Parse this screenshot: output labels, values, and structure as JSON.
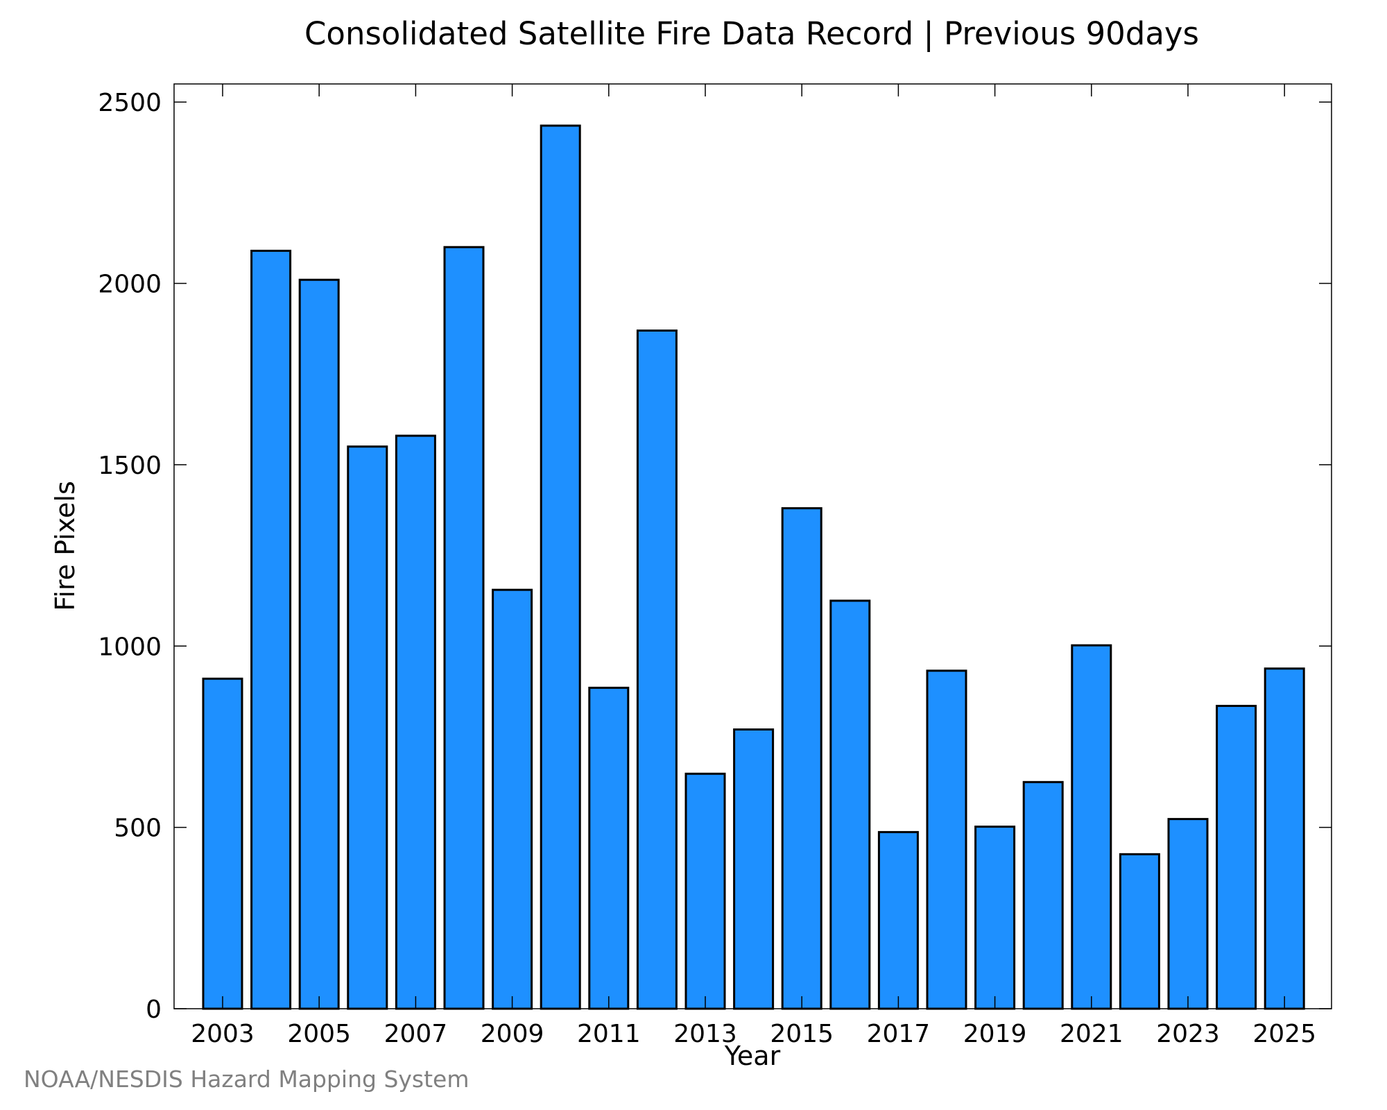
{
  "chart_data": {
    "type": "bar",
    "title": "Consolidated Satellite Fire Data Record | Previous 90days",
    "xlabel": "Year",
    "ylabel": "Fire Pixels",
    "categories": [
      "2003",
      "2004",
      "2005",
      "2006",
      "2007",
      "2008",
      "2009",
      "2010",
      "2011",
      "2012",
      "2013",
      "2014",
      "2015",
      "2016",
      "2017",
      "2018",
      "2019",
      "2020",
      "2021",
      "2022",
      "2023",
      "2024",
      "2025"
    ],
    "values": [
      910,
      2090,
      2010,
      1550,
      1580,
      2100,
      1155,
      2435,
      885,
      1870,
      648,
      770,
      1380,
      1125,
      487,
      932,
      502,
      625,
      1002,
      426,
      523,
      835,
      938
    ],
    "x_tick_labels": [
      "2003",
      "2005",
      "2007",
      "2009",
      "2011",
      "2013",
      "2015",
      "2017",
      "2019",
      "2021",
      "2023",
      "2025"
    ],
    "y_tick_labels": [
      "0",
      "500",
      "1000",
      "1500",
      "2000",
      "2500"
    ],
    "ylim": [
      0,
      2550
    ],
    "grid": false,
    "bar_color": "#1e90ff",
    "bar_edge_color": "#000000"
  },
  "footer": {
    "credit": "NOAA/NESDIS Hazard Mapping System"
  }
}
